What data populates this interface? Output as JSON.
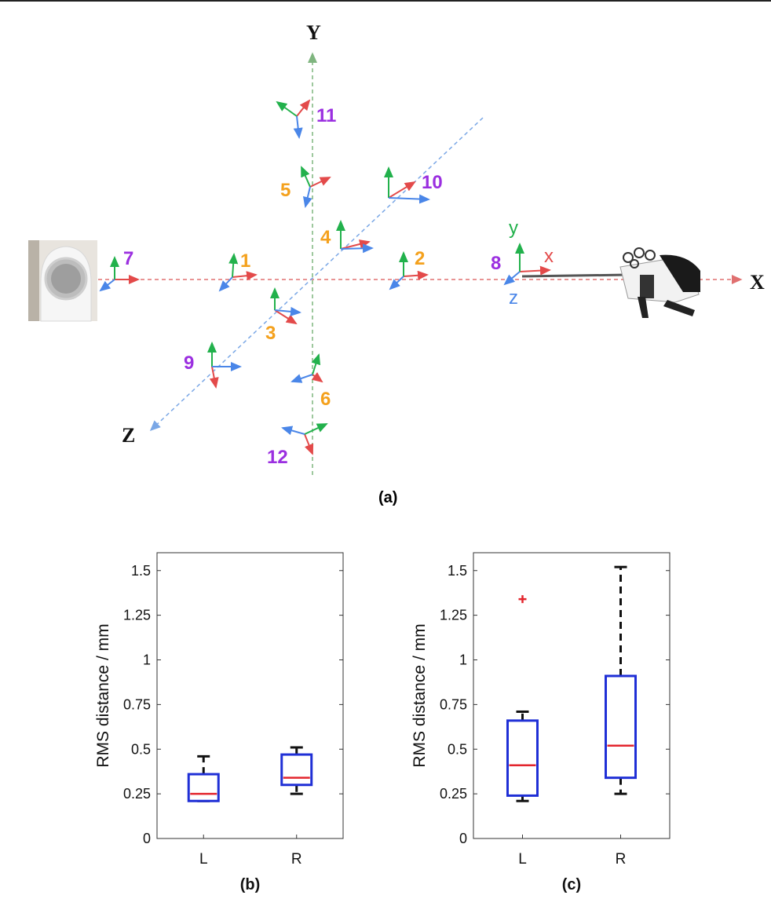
{
  "panel_a": {
    "caption": "(a)",
    "axes": {
      "x": "X",
      "y": "Y",
      "z": "Z"
    },
    "local_axes": {
      "x": "x",
      "y": "y",
      "z": "z"
    },
    "colors": {
      "x_axis": "#e34a4a",
      "y_axis": "#22b14c",
      "z_axis": "#4a86e8",
      "orange_label": "#f4a11d",
      "purple_label": "#9b2fe0"
    },
    "markers": [
      "1",
      "2",
      "3",
      "4",
      "5",
      "6",
      "7",
      "8",
      "9",
      "10",
      "11",
      "12"
    ]
  },
  "chart_data": [
    {
      "type": "box",
      "caption": "(b)",
      "ylabel": "RMS distance / mm",
      "ylim": [
        0,
        1.6
      ],
      "yticks": [
        "0",
        "0.25",
        "0.5",
        "0.75",
        "1",
        "1.25",
        "1.5"
      ],
      "categories": [
        "L",
        "R"
      ],
      "boxes": [
        {
          "category": "L",
          "whisker_low": 0.21,
          "q1": 0.21,
          "median": 0.25,
          "q3": 0.36,
          "whisker_high": 0.46,
          "outliers": []
        },
        {
          "category": "R",
          "whisker_low": 0.25,
          "q1": 0.3,
          "median": 0.34,
          "q3": 0.47,
          "whisker_high": 0.51,
          "outliers": []
        }
      ]
    },
    {
      "type": "box",
      "caption": "(c)",
      "ylabel": "RMS distance / mm",
      "ylim": [
        0,
        1.6
      ],
      "yticks": [
        "0",
        "0.25",
        "0.5",
        "0.75",
        "1",
        "1.25",
        "1.5"
      ],
      "categories": [
        "L",
        "R"
      ],
      "boxes": [
        {
          "category": "L",
          "whisker_low": 0.21,
          "q1": 0.24,
          "median": 0.41,
          "q3": 0.66,
          "whisker_high": 0.71,
          "outliers": [
            1.34
          ]
        },
        {
          "category": "R",
          "whisker_low": 0.25,
          "q1": 0.34,
          "median": 0.52,
          "q3": 0.91,
          "whisker_high": 1.52,
          "outliers": []
        }
      ]
    }
  ]
}
